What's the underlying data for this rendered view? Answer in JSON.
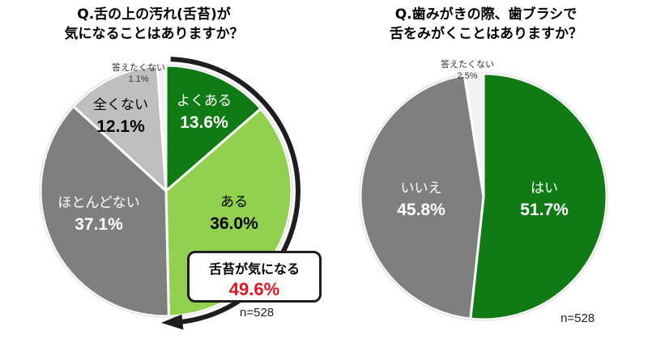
{
  "chart_data": [
    {
      "type": "pie",
      "title_lines": [
        "Q.舌の上の汚れ(舌苔)が",
        "気になることはありますか？"
      ],
      "slices": [
        {
          "label": "よくある",
          "value": 13.6,
          "value_text": "13.6%",
          "color": "#107b14",
          "text_color": "#ffffff"
        },
        {
          "label": "ある",
          "value": 36.0,
          "value_text": "36.0%",
          "color": "#92d050",
          "text_color": "#000000"
        },
        {
          "label": "ほとんどない",
          "value": 37.1,
          "value_text": "37.1%",
          "color": "#7f7f7f",
          "text_color": "#ffffff"
        },
        {
          "label": "全くない",
          "value": 12.1,
          "value_text": "12.1%",
          "color": "#bfbfbf",
          "text_color": "#000000"
        },
        {
          "label": "答えたくない",
          "value": 1.1,
          "value_text": "1.1%",
          "color": "#f2f2f2",
          "text_color": "#333333"
        }
      ],
      "n_text": "n=528",
      "callout": {
        "label": "舌苔が気になる",
        "value_text": "49.6%",
        "value_color": "#e0171f"
      }
    },
    {
      "type": "pie",
      "title_lines": [
        "Q.歯みがきの際、歯ブラシで",
        "舌をみがくことはありますか？"
      ],
      "slices": [
        {
          "label": "はい",
          "value": 51.7,
          "value_text": "51.7%",
          "color": "#107b14",
          "text_color": "#ffffff"
        },
        {
          "label": "いいえ",
          "value": 45.8,
          "value_text": "45.8%",
          "color": "#7f7f7f",
          "text_color": "#ffffff"
        },
        {
          "label": "答えたくない",
          "value": 2.5,
          "value_text": "2.5%",
          "color": "#f2f2f2",
          "text_color": "#333333"
        }
      ],
      "n_text": "n=528"
    }
  ]
}
